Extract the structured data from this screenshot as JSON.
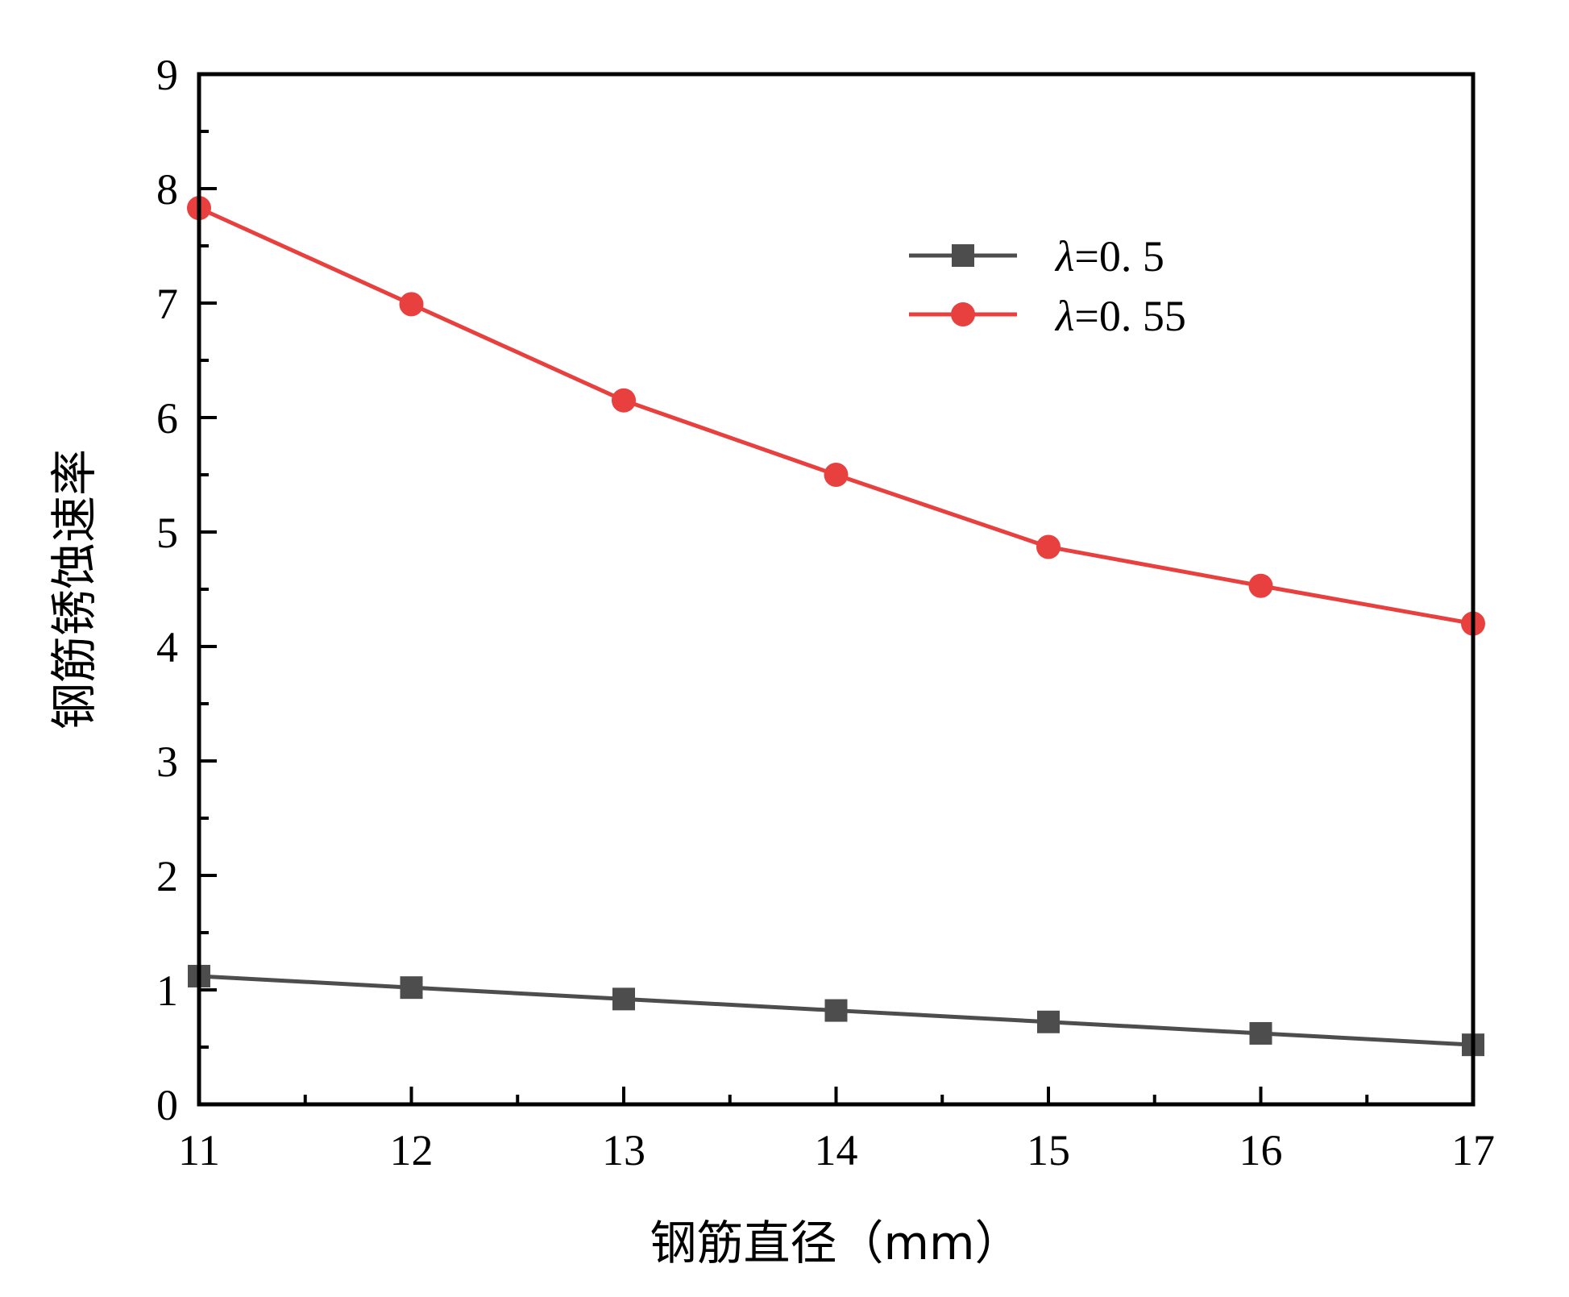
{
  "chart_data": {
    "type": "line",
    "xlabel": "钢筋直径（mm）",
    "ylabel": "钢筋锈蚀速率",
    "xlim": [
      11,
      17
    ],
    "ylim": [
      0,
      9
    ],
    "x_ticks": [
      "11",
      "12",
      "13",
      "14",
      "15",
      "16",
      "17"
    ],
    "y_ticks": [
      "0",
      "1",
      "2",
      "3",
      "4",
      "5",
      "6",
      "7",
      "8",
      "9"
    ],
    "grid": false,
    "legend_position": "top-right",
    "x": [
      11,
      12,
      13,
      14,
      15,
      16,
      17
    ],
    "series": [
      {
        "name": "λ=0.5",
        "legend_symbol": "λ",
        "legend_rest": "=0. 5",
        "color": "#4d4d4d",
        "marker": "square",
        "values": [
          1.12,
          1.02,
          0.92,
          0.82,
          0.72,
          0.62,
          0.52
        ]
      },
      {
        "name": "λ=0.55",
        "legend_symbol": "λ",
        "legend_rest": "=0. 55",
        "color": "#e8403f",
        "marker": "circle",
        "values": [
          7.83,
          6.99,
          6.15,
          5.5,
          4.87,
          4.53,
          4.2
        ]
      }
    ]
  }
}
